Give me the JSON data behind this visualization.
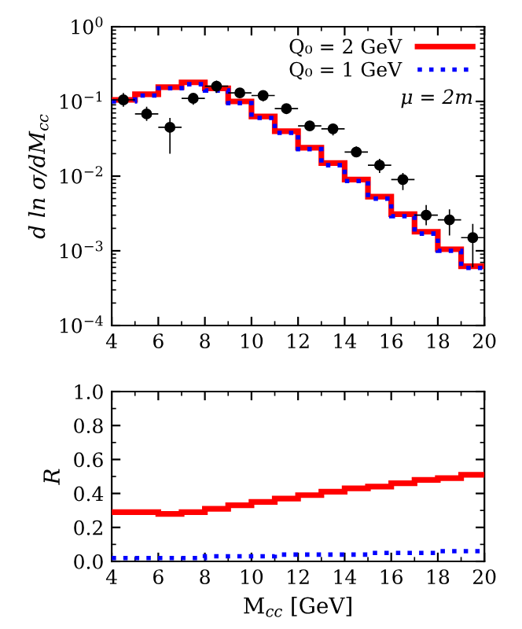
{
  "chart_data": [
    {
      "type": "histogram",
      "ylabel": "d ln σ/dM$_{cc}$",
      "bins": [
        4,
        5,
        6,
        7,
        8,
        9,
        10,
        11,
        12,
        13,
        14,
        15,
        16,
        17,
        18,
        19,
        20
      ],
      "series": [
        {
          "name": "Q₀ = 2 GeV",
          "color": "#ff0000",
          "line_style": "solid",
          "values": [
            0.105,
            0.125,
            0.155,
            0.18,
            0.15,
            0.1,
            0.063,
            0.04,
            0.024,
            0.015,
            0.009,
            0.0053,
            0.0031,
            0.0018,
            0.00105,
            0.00062
          ]
        },
        {
          "name": "Q₀ = 1 GeV",
          "color": "#0000ff",
          "line_style": "dotted",
          "values": [
            0.1,
            0.12,
            0.15,
            0.17,
            0.14,
            0.095,
            0.06,
            0.038,
            0.023,
            0.014,
            0.0086,
            0.005,
            0.0029,
            0.0017,
            0.001,
            0.00059
          ]
        },
        {
          "type": "scatter",
          "color": "#000000",
          "marker": "circle",
          "x": [
            4.5,
            5.5,
            6.5,
            7.5,
            8.5,
            9.5,
            10.5,
            11.5,
            12.5,
            13.5,
            14.5,
            15.5,
            16.5,
            17.5,
            18.5,
            19.5
          ],
          "values": [
            0.105,
            0.068,
            0.045,
            0.11,
            0.16,
            0.13,
            0.12,
            0.08,
            0.047,
            0.043,
            0.021,
            0.014,
            0.009,
            0.003,
            0.0026,
            0.0015
          ],
          "errors": [
            [
              0.085,
              0.13
            ],
            [
              0.055,
              0.085
            ],
            [
              0.02,
              0.06
            ],
            [
              0.09,
              0.13
            ],
            [
              0.13,
              0.19
            ],
            [
              0.11,
              0.15
            ],
            [
              0.1,
              0.14
            ],
            [
              0.07,
              0.09
            ],
            [
              0.04,
              0.055
            ],
            [
              0.035,
              0.05
            ],
            [
              0.018,
              0.025
            ],
            [
              0.011,
              0.017
            ],
            [
              0.0065,
              0.011
            ],
            [
              0.0022,
              0.0041
            ],
            [
              0.0016,
              0.0036
            ],
            [
              0.0006,
              0.0023
            ]
          ],
          "xerrors": [
            0.5,
            0.5,
            0.5,
            0.5,
            0.5,
            0.5,
            0.5,
            0.5,
            0.5,
            0.5,
            0.5,
            0.5,
            0.5,
            0.5,
            0.5,
            0.5
          ]
        }
      ],
      "log": "y",
      "xlim": [
        4,
        20
      ],
      "xticks": [
        4,
        6,
        8,
        10,
        12,
        14,
        16,
        18,
        20
      ],
      "ylim": [
        0.0001,
        1
      ],
      "yticks": [
        {
          "value": 0.0001,
          "label": "10$^{−4}$"
        },
        {
          "value": 0.001,
          "label": "10$^{−3}$"
        },
        {
          "value": 0.01,
          "label": "10$^{−2}$"
        },
        {
          "value": 0.1,
          "label": "10$^{−1}$"
        },
        {
          "value": 1,
          "label": "10$^{0}$"
        }
      ],
      "annotations": [
        "μ = 2m"
      ],
      "legend": "top right",
      "grid": false
    },
    {
      "type": "histogram",
      "xlabel": "M$_{cc}$ [GeV]",
      "ylabel": "R",
      "bins": [
        4,
        5,
        6,
        7,
        8,
        9,
        10,
        11,
        12,
        13,
        14,
        15,
        16,
        17,
        18,
        19,
        20
      ],
      "series": [
        {
          "color": "#ff0000",
          "line_style": "solid",
          "values": [
            0.29,
            0.29,
            0.28,
            0.29,
            0.31,
            0.33,
            0.35,
            0.37,
            0.39,
            0.41,
            0.43,
            0.44,
            0.46,
            0.48,
            0.49,
            0.51
          ]
        },
        {
          "color": "#0000ff",
          "line_style": "dotted",
          "values": [
            0.02,
            0.02,
            0.02,
            0.02,
            0.03,
            0.03,
            0.03,
            0.04,
            0.04,
            0.04,
            0.04,
            0.05,
            0.05,
            0.05,
            0.06,
            0.06
          ]
        }
      ],
      "xlim": [
        4,
        20
      ],
      "xticks": [
        4,
        6,
        8,
        10,
        12,
        14,
        16,
        18,
        20
      ],
      "ylim": [
        0,
        1
      ],
      "yticks": [
        {
          "value": 0,
          "label": "0.0"
        },
        {
          "value": 0.2,
          "label": "0.2"
        },
        {
          "value": 0.4,
          "label": "0.4"
        },
        {
          "value": 0.6,
          "label": "0.6"
        },
        {
          "value": 0.8,
          "label": "0.8"
        },
        {
          "value": 1,
          "label": "1.0"
        }
      ],
      "grid": false
    }
  ]
}
